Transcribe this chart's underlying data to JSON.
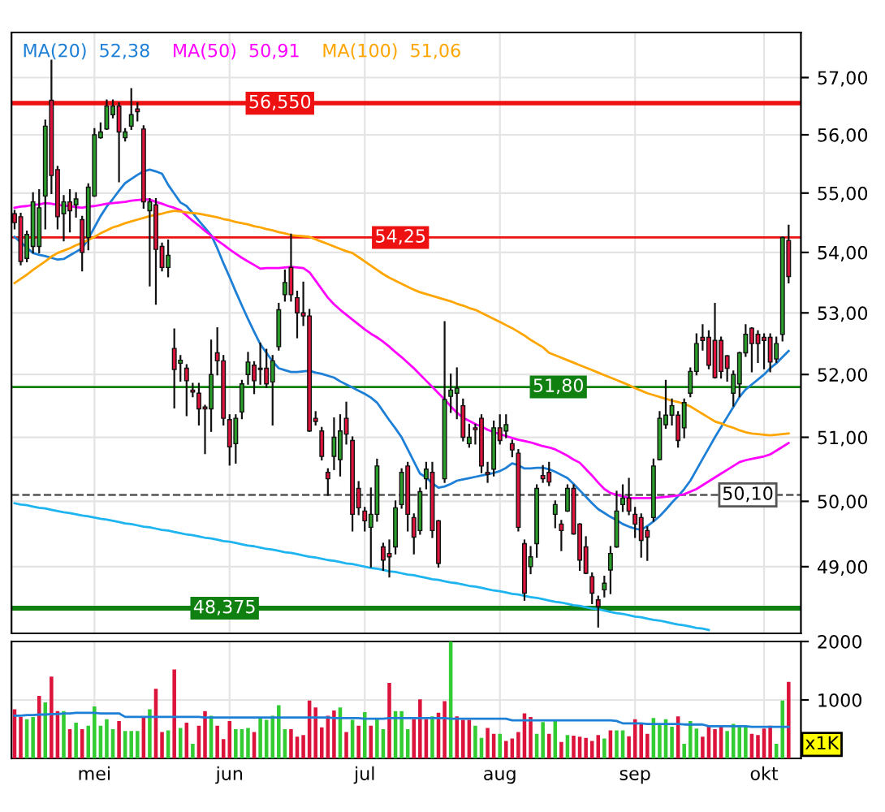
{
  "chart_data": [
    {
      "type": "candlestick",
      "log": true,
      "grid": true,
      "legend": "top left",
      "tick_labels": "y",
      "categories": [
        null,
        null,
        null,
        null,
        null,
        null,
        null,
        null,
        null,
        null,
        null,
        null,
        null,
        null,
        null,
        null,
        null,
        null,
        null,
        null,
        null,
        null,
        null,
        null,
        null,
        null,
        null,
        null,
        null,
        null,
        null,
        null,
        null,
        null,
        null,
        null,
        null,
        null,
        null,
        null,
        null,
        null,
        null,
        null,
        null,
        null,
        null,
        null,
        null,
        null,
        null,
        null,
        null,
        null,
        null,
        null,
        null,
        null,
        null,
        null,
        null,
        null,
        null,
        null,
        null,
        null,
        null,
        null,
        null,
        null,
        null,
        null,
        null,
        null,
        null,
        null,
        null,
        null,
        null,
        null,
        null,
        null,
        null,
        null,
        null,
        null,
        null,
        null,
        null,
        null,
        null,
        null,
        null,
        null,
        null,
        null,
        null,
        null,
        null,
        null,
        null,
        null,
        null,
        null,
        null,
        null,
        null,
        null,
        null,
        null,
        null,
        null,
        null,
        null,
        null,
        null,
        null,
        null,
        null,
        null,
        null,
        null,
        null,
        null,
        null,
        null,
        null
      ],
      "ohlc": [
        [
          54.65,
          54.7,
          54.4,
          54.5
        ],
        [
          54.6,
          54.65,
          53.8,
          53.85
        ],
        [
          53.9,
          54.35,
          53.85,
          54.3
        ],
        [
          54.1,
          55.0,
          54.0,
          54.85
        ],
        [
          54.1,
          55.05,
          54.0,
          54.75
        ],
        [
          54.95,
          56.25,
          54.4,
          56.15
        ],
        [
          56.6,
          57.3,
          55.0,
          55.3
        ],
        [
          55.4,
          55.45,
          54.4,
          54.6
        ],
        [
          54.65,
          54.95,
          54.2,
          54.85
        ],
        [
          54.85,
          55.05,
          54.35,
          54.7
        ],
        [
          54.8,
          55.0,
          54.6,
          54.9
        ],
        [
          54.55,
          54.6,
          53.7,
          54.0
        ],
        [
          54.25,
          55.15,
          54.05,
          55.1
        ],
        [
          54.95,
          56.1,
          54.95,
          56.0
        ],
        [
          55.95,
          56.2,
          55.95,
          56.05
        ],
        [
          56.1,
          56.6,
          56.1,
          56.5
        ],
        [
          56.35,
          56.6,
          56.3,
          56.5
        ],
        [
          56.5,
          56.55,
          55.2,
          56.05
        ],
        [
          55.95,
          56.1,
          55.9,
          56.05
        ],
        [
          56.15,
          56.8,
          56.1,
          56.35
        ],
        [
          56.45,
          56.55,
          56.25,
          56.4
        ],
        [
          56.1,
          56.15,
          54.75,
          54.85
        ],
        [
          54.7,
          54.9,
          53.45,
          54.85
        ],
        [
          54.8,
          54.9,
          53.15,
          54.05
        ],
        [
          54.1,
          54.15,
          53.7,
          53.75
        ],
        [
          53.75,
          54.2,
          53.6,
          53.95
        ],
        [
          52.42,
          52.73,
          51.47,
          52.08
        ],
        [
          52.18,
          52.3,
          51.9,
          52.23
        ],
        [
          52.1,
          52.15,
          51.35,
          51.9
        ],
        [
          51.75,
          51.85,
          51.65,
          51.72
        ],
        [
          51.7,
          51.85,
          51.2,
          51.45
        ],
        [
          51.48,
          51.5,
          50.75,
          51.45
        ],
        [
          51.45,
          52.55,
          51.1,
          52.0
        ],
        [
          52.35,
          52.75,
          52.0,
          52.22
        ],
        [
          52.22,
          52.3,
          51.2,
          51.3
        ],
        [
          51.28,
          51.35,
          50.57,
          50.85
        ],
        [
          50.9,
          51.35,
          50.6,
          51.3
        ],
        [
          51.4,
          51.9,
          51.3,
          51.85
        ],
        [
          52.0,
          52.35,
          51.85,
          52.2
        ],
        [
          52.15,
          52.2,
          51.7,
          51.9
        ],
        [
          52.1,
          52.5,
          51.85,
          52.08
        ],
        [
          52.1,
          52.4,
          51.8,
          51.85
        ],
        [
          51.88,
          52.3,
          51.2,
          52.22
        ],
        [
          52.45,
          53.15,
          52.4,
          53.05
        ],
        [
          53.3,
          53.7,
          53.2,
          53.5
        ],
        [
          53.75,
          54.3,
          53.2,
          53.3
        ],
        [
          53.25,
          53.35,
          52.6,
          53.0
        ],
        [
          53.0,
          53.5,
          52.8,
          52.95
        ],
        [
          52.95,
          53.05,
          51.1,
          51.1
        ],
        [
          51.3,
          51.4,
          51.2,
          51.25
        ],
        [
          51.1,
          51.15,
          50.65,
          50.7
        ],
        [
          50.45,
          50.5,
          50.1,
          50.35
        ],
        [
          50.7,
          51.3,
          50.5,
          51.0
        ],
        [
          50.65,
          51.35,
          50.4,
          51.1
        ],
        [
          51.3,
          51.55,
          50.9,
          51.05
        ],
        [
          50.95,
          51.0,
          49.55,
          49.8
        ],
        [
          50.2,
          50.3,
          49.8,
          49.9
        ],
        [
          49.85,
          49.9,
          49.55,
          49.7
        ],
        [
          49.6,
          50.2,
          49.0,
          49.8
        ],
        [
          49.8,
          50.65,
          49.7,
          50.55
        ],
        [
          49.3,
          49.35,
          48.95,
          49.1
        ],
        [
          49.2,
          49.4,
          48.85,
          49.15
        ],
        [
          49.3,
          50.0,
          49.2,
          49.9
        ],
        [
          49.95,
          50.5,
          49.9,
          50.45
        ],
        [
          50.55,
          50.6,
          49.55,
          49.8
        ],
        [
          49.75,
          49.8,
          49.2,
          49.45
        ],
        [
          49.55,
          50.2,
          49.5,
          50.15
        ],
        [
          50.35,
          50.6,
          50.2,
          50.5
        ],
        [
          50.45,
          50.6,
          49.45,
          49.55
        ],
        [
          49.7,
          49.7,
          49.0,
          49.05
        ],
        [
          50.35,
          52.85,
          50.3,
          51.6
        ],
        [
          51.65,
          52.0,
          51.4,
          51.75
        ],
        [
          51.7,
          52.1,
          51.3,
          51.78
        ],
        [
          51.5,
          51.6,
          50.95,
          51.0
        ],
        [
          50.9,
          51.2,
          50.85,
          51.0
        ],
        [
          51.15,
          51.2,
          50.9,
          51.12
        ],
        [
          51.3,
          51.35,
          50.45,
          50.55
        ],
        [
          50.45,
          50.6,
          50.3,
          50.42
        ],
        [
          50.5,
          51.25,
          50.4,
          51.15
        ],
        [
          51.15,
          51.35,
          50.9,
          50.95
        ],
        [
          51.1,
          51.35,
          51.0,
          51.2
        ],
        [
          50.9,
          50.95,
          50.7,
          50.8
        ],
        [
          50.75,
          50.8,
          49.55,
          49.6
        ],
        [
          49.35,
          49.4,
          48.5,
          48.6
        ],
        [
          49.0,
          49.3,
          48.9,
          49.15
        ],
        [
          49.35,
          50.25,
          49.15,
          50.2
        ],
        [
          50.4,
          50.55,
          50.3,
          50.35
        ],
        [
          50.45,
          50.6,
          50.25,
          50.3
        ],
        [
          49.8,
          50.0,
          49.6,
          49.95
        ],
        [
          49.65,
          49.7,
          49.25,
          49.55
        ],
        [
          49.85,
          50.25,
          49.85,
          50.2
        ],
        [
          50.2,
          50.25,
          49.5,
          49.5
        ],
        [
          49.65,
          49.65,
          48.95,
          49.1
        ],
        [
          49.3,
          49.45,
          48.9,
          48.9
        ],
        [
          48.85,
          48.9,
          48.45,
          48.6
        ],
        [
          48.5,
          48.55,
          48.1,
          48.4
        ],
        [
          48.65,
          48.85,
          48.55,
          48.75
        ],
        [
          48.95,
          49.3,
          48.6,
          49.2
        ],
        [
          49.3,
          50.15,
          49.3,
          49.85
        ],
        [
          49.95,
          50.25,
          49.85,
          50.05
        ],
        [
          50.05,
          50.35,
          49.8,
          49.85
        ],
        [
          49.8,
          49.9,
          49.45,
          49.65
        ],
        [
          49.75,
          49.8,
          49.15,
          49.4
        ],
        [
          49.55,
          49.6,
          49.1,
          49.45
        ],
        [
          49.75,
          50.65,
          49.7,
          50.55
        ],
        [
          50.65,
          51.4,
          50.65,
          51.3
        ],
        [
          51.2,
          51.9,
          51.15,
          51.35
        ],
        [
          51.35,
          51.6,
          51.2,
          51.5
        ],
        [
          51.35,
          51.4,
          50.85,
          50.95
        ],
        [
          51.15,
          51.6,
          51.0,
          51.55
        ],
        [
          51.7,
          52.1,
          51.65,
          52.05
        ],
        [
          52.05,
          52.65,
          52.0,
          52.5
        ],
        [
          52.6,
          52.8,
          52.4,
          52.55
        ],
        [
          52.6,
          52.7,
          52.1,
          52.15
        ],
        [
          52.55,
          53.15,
          51.95,
          51.95
        ],
        [
          52.55,
          52.6,
          51.95,
          52.05
        ],
        [
          52.3,
          52.3,
          51.9,
          52.1
        ],
        [
          51.7,
          52.05,
          51.5,
          52.0
        ],
        [
          51.85,
          52.35,
          51.65,
          52.35
        ],
        [
          52.35,
          52.8,
          52.3,
          52.65
        ],
        [
          52.75,
          52.75,
          52.05,
          52.5
        ],
        [
          52.65,
          52.7,
          52.2,
          52.5
        ],
        [
          52.6,
          52.65,
          52.1,
          52.55
        ],
        [
          52.6,
          52.65,
          52.05,
          52.2
        ],
        [
          52.25,
          52.6,
          52.2,
          52.5
        ],
        [
          52.65,
          54.25,
          52.55,
          54.25
        ],
        [
          54.2,
          54.45,
          53.5,
          53.6
        ]
      ],
      "colors": [
        "#dc143c",
        "#dc143c",
        "#2a9d2a",
        "#2a9d2a",
        "#2a9d2a",
        "#2a9d2a",
        "#dc143c",
        "#dc143c",
        "#2a9d2a",
        "#dc143c",
        "#2a9d2a",
        "#dc143c",
        "#2a9d2a",
        "#2a9d2a",
        "#2a9d2a",
        "#2a9d2a",
        "#2a9d2a",
        "#dc143c",
        "#2a9d2a",
        "#2a9d2a",
        "#dc143c",
        "#dc143c",
        "#2a9d2a",
        "#dc143c",
        "#dc143c",
        "#2a9d2a",
        "#dc143c",
        "#2a9d2a",
        "#dc143c",
        "#dc143c",
        "#dc143c",
        "#dc143c",
        "#2a9d2a",
        "#dc143c",
        "#dc143c",
        "#dc143c",
        "#2a9d2a",
        "#2a9d2a",
        "#2a9d2a",
        "#dc143c",
        "#dc143c",
        "#dc143c",
        "#2a9d2a",
        "#2a9d2a",
        "#2a9d2a",
        "#dc143c",
        "#dc143c",
        "#dc143c",
        "#dc143c",
        "#dc143c",
        "#dc143c",
        "#dc143c",
        "#2a9d2a",
        "#2a9d2a",
        "#dc143c",
        "#dc143c",
        "#dc143c",
        "#dc143c",
        "#2a9d2a",
        "#2a9d2a",
        "#dc143c",
        "#dc143c",
        "#2a9d2a",
        "#2a9d2a",
        "#dc143c",
        "#dc143c",
        "#2a9d2a",
        "#2a9d2a",
        "#dc143c",
        "#dc143c",
        "#2a9d2a",
        "#2a9d2a",
        "#2a9d2a",
        "#dc143c",
        "#2a9d2a",
        "#dc143c",
        "#dc143c",
        "#dc143c",
        "#2a9d2a",
        "#dc143c",
        "#2a9d2a",
        "#dc143c",
        "#dc143c",
        "#dc143c",
        "#2a9d2a",
        "#2a9d2a",
        "#dc143c",
        "#dc143c",
        "#2a9d2a",
        "#dc143c",
        "#2a9d2a",
        "#dc143c",
        "#dc143c",
        "#dc143c",
        "#dc143c",
        "#dc143c",
        "#2a9d2a",
        "#2a9d2a",
        "#2a9d2a",
        "#2a9d2a",
        "#dc143c",
        "#dc143c",
        "#dc143c",
        "#dc143c",
        "#2a9d2a",
        "#2a9d2a",
        "#2a9d2a",
        "#2a9d2a",
        "#dc143c",
        "#2a9d2a",
        "#2a9d2a",
        "#2a9d2a",
        "#dc143c",
        "#dc143c",
        "#dc143c",
        "#dc143c",
        "#dc143c",
        "#2a9d2a",
        "#2a9d2a",
        "#2a9d2a",
        "#dc143c",
        "#dc143c",
        "#dc143c",
        "#dc143c",
        "#2a9d2a",
        "#2a9d2a",
        "#dc143c"
      ],
      "series": [
        {
          "type": "line",
          "name": "MA(20)  52,38",
          "color": "#1e7fd6",
          "values": [
            54.26,
            54.17,
            54.08,
            53.99,
            53.96,
            53.94,
            53.91,
            53.88,
            53.89,
            53.95,
            54.01,
            54.07,
            54.23,
            54.42,
            54.61,
            54.77,
            54.9,
            55.04,
            55.17,
            55.24,
            55.31,
            55.37,
            55.4,
            55.37,
            55.33,
            55.14,
            54.99,
            54.84,
            54.78,
            54.66,
            54.53,
            54.41,
            54.29,
            54.07,
            53.82,
            53.59,
            53.35,
            53.12,
            52.9,
            52.69,
            52.49,
            52.35,
            52.21,
            52.1,
            52.07,
            52.04,
            52.04,
            52.05,
            52.06,
            52.03,
            52.01,
            51.98,
            51.95,
            51.89,
            51.84,
            51.79,
            51.74,
            51.69,
            51.63,
            51.55,
            51.41,
            51.27,
            51.14,
            51.0,
            50.81,
            50.62,
            50.43,
            50.37,
            50.28,
            50.21,
            50.23,
            50.27,
            50.32,
            50.34,
            50.36,
            50.38,
            50.4,
            50.42,
            50.44,
            50.47,
            50.52,
            50.59,
            50.56,
            50.51,
            50.51,
            50.52,
            50.52,
            50.5,
            50.46,
            50.41,
            50.36,
            50.27,
            50.17,
            50.07,
            49.97,
            49.88,
            49.82,
            49.76,
            49.71,
            49.65,
            49.61,
            49.58,
            49.56,
            49.62,
            49.69,
            49.77,
            49.87,
            49.98,
            50.08,
            50.19,
            50.32,
            50.49,
            50.66,
            50.83,
            51.0,
            51.16,
            51.32,
            51.48,
            51.64,
            51.76,
            51.84,
            51.92,
            52.0,
            52.1,
            52.18,
            52.28,
            52.38
          ]
        },
        {
          "type": "line",
          "name": "MA(50)  50,91",
          "color": "#ff00ff",
          "values": [
            54.75,
            54.77,
            54.78,
            54.8,
            54.81,
            54.83,
            54.82,
            54.8,
            54.79,
            54.78,
            54.76,
            54.75,
            54.77,
            54.78,
            54.8,
            54.82,
            54.83,
            54.84,
            54.85,
            54.87,
            54.88,
            54.89,
            54.89,
            54.85,
            54.82,
            54.78,
            54.75,
            54.71,
            54.62,
            54.53,
            54.45,
            54.36,
            54.28,
            54.2,
            54.13,
            54.05,
            53.98,
            53.91,
            53.85,
            53.79,
            53.73,
            53.74,
            53.74,
            53.74,
            53.75,
            53.76,
            53.75,
            53.74,
            53.67,
            53.53,
            53.39,
            53.25,
            53.14,
            53.05,
            52.97,
            52.89,
            52.81,
            52.73,
            52.66,
            52.6,
            52.53,
            52.45,
            52.36,
            52.28,
            52.19,
            52.1,
            52.0,
            51.9,
            51.8,
            51.7,
            51.6,
            51.49,
            51.39,
            51.31,
            51.26,
            51.21,
            51.17,
            51.12,
            51.08,
            51.05,
            51.02,
            50.99,
            50.96,
            50.94,
            50.92,
            50.89,
            50.86,
            50.84,
            50.81,
            50.76,
            50.71,
            50.65,
            50.6,
            50.5,
            50.4,
            50.29,
            50.19,
            50.13,
            50.1,
            50.08,
            50.05,
            50.05,
            50.05,
            50.05,
            50.05,
            50.06,
            50.07,
            50.08,
            50.09,
            50.11,
            50.15,
            50.19,
            50.25,
            50.31,
            50.37,
            50.43,
            50.49,
            50.55,
            50.61,
            50.64,
            50.66,
            50.68,
            50.7,
            50.73,
            50.79,
            50.85,
            50.91
          ]
        },
        {
          "type": "line",
          "name": "MA(100)  51,06",
          "color": "#ffa500",
          "values": [
            53.49,
            53.56,
            53.63,
            53.71,
            53.78,
            53.85,
            53.93,
            53.99,
            54.03,
            54.07,
            54.12,
            54.16,
            54.21,
            54.26,
            54.32,
            54.37,
            54.42,
            54.45,
            54.49,
            54.52,
            54.55,
            54.58,
            54.61,
            54.63,
            54.65,
            54.68,
            54.7,
            54.69,
            54.67,
            54.66,
            54.65,
            54.63,
            54.61,
            54.59,
            54.56,
            54.54,
            54.51,
            54.49,
            54.47,
            54.44,
            54.42,
            54.39,
            54.37,
            54.34,
            54.32,
            54.29,
            54.28,
            54.27,
            54.26,
            54.22,
            54.18,
            54.14,
            54.1,
            54.06,
            54.02,
            53.99,
            53.92,
            53.85,
            53.78,
            53.71,
            53.64,
            53.58,
            53.53,
            53.48,
            53.43,
            53.38,
            53.34,
            53.31,
            53.28,
            53.25,
            53.22,
            53.19,
            53.15,
            53.12,
            53.08,
            53.05,
            53.0,
            52.95,
            52.9,
            52.85,
            52.8,
            52.75,
            52.69,
            52.63,
            52.56,
            52.5,
            52.44,
            52.35,
            52.31,
            52.27,
            52.23,
            52.19,
            52.15,
            52.11,
            52.07,
            52.03,
            51.99,
            51.95,
            51.91,
            51.87,
            51.83,
            51.78,
            51.74,
            51.7,
            51.67,
            51.64,
            51.61,
            51.58,
            51.56,
            51.53,
            51.49,
            51.43,
            51.37,
            51.31,
            51.25,
            51.22,
            51.18,
            51.15,
            51.11,
            51.08,
            51.06,
            51.05,
            51.04,
            51.03,
            51.04,
            51.05,
            51.06
          ]
        },
        {
          "type": "line",
          "color": "#1eb4f0",
          "values": [
            49.97,
            49.95,
            49.94,
            49.92,
            49.9,
            49.89,
            49.87,
            49.85,
            49.83,
            49.82,
            49.8,
            49.78,
            49.77,
            49.75,
            49.73,
            49.72,
            49.7,
            49.68,
            49.66,
            49.65,
            49.63,
            49.61,
            49.6,
            49.58,
            49.56,
            49.55,
            49.53,
            49.51,
            49.49,
            49.48,
            49.46,
            49.44,
            49.43,
            49.41,
            49.39,
            49.38,
            49.36,
            49.34,
            49.32,
            49.31,
            49.29,
            49.27,
            49.26,
            49.24,
            49.22,
            49.21,
            49.19,
            49.17,
            49.15,
            49.14,
            49.12,
            49.1,
            49.09,
            49.07,
            49.05,
            49.04,
            49.02,
            49.0,
            48.98,
            48.97,
            48.95,
            48.93,
            48.92,
            48.9,
            48.88,
            48.87,
            48.85,
            48.83,
            48.81,
            48.8,
            48.78,
            48.76,
            48.75,
            48.73,
            48.71,
            48.7,
            48.68,
            48.66,
            48.64,
            48.63,
            48.61,
            48.59,
            48.58,
            48.56,
            48.54,
            48.53,
            48.51,
            48.49,
            48.47,
            48.46,
            48.44,
            48.42,
            48.41,
            48.39,
            48.37,
            48.36,
            48.34,
            48.32,
            48.3,
            48.29,
            48.27,
            48.25,
            48.24,
            48.22,
            48.2,
            48.19,
            48.17,
            48.15,
            48.13,
            48.12,
            48.1,
            48.08,
            48.07,
            48.05,
            null,
            null,
            null,
            null,
            null,
            null,
            null,
            null,
            null,
            null,
            null,
            null,
            null
          ]
        }
      ],
      "ref_lines": [
        {
          "axis": "y",
          "value": 56.55,
          "label": "56,550",
          "color": "#ee1111"
        },
        {
          "axis": "y",
          "value": 54.25,
          "label": "54,25",
          "color": "#ee1111"
        },
        {
          "axis": "y",
          "value": 51.8,
          "label": "51,80",
          "color": "#108010"
        },
        {
          "axis": "y",
          "value": 50.1,
          "label": "50,10",
          "color": "#555555",
          "line_style": "dashed"
        },
        {
          "axis": "y",
          "value": 48.375,
          "label": "48,375",
          "color": "#108010"
        }
      ],
      "ylim": [
        48.0,
        57.8
      ],
      "yticks": [
        {
          "value": 49,
          "label": "49,00"
        },
        {
          "value": 50,
          "label": "50,00"
        },
        {
          "value": 51,
          "label": "51,00"
        },
        {
          "value": 52,
          "label": "52,00"
        },
        {
          "value": 53,
          "label": "53,00"
        },
        {
          "value": 54,
          "label": "54,00"
        },
        {
          "value": 55,
          "label": "55,00"
        },
        {
          "value": 56,
          "label": "56,00"
        },
        {
          "value": 57,
          "label": "57,00"
        }
      ]
    },
    {
      "type": "bar",
      "grid": true,
      "categories": [
        null,
        null,
        null,
        null,
        null,
        null,
        null,
        null,
        null,
        null,
        null,
        null,
        null,
        "mei",
        null,
        null,
        null,
        null,
        null,
        null,
        null,
        null,
        null,
        null,
        null,
        null,
        null,
        null,
        null,
        null,
        null,
        null,
        null,
        null,
        null,
        "jun",
        null,
        null,
        null,
        null,
        null,
        null,
        null,
        null,
        null,
        null,
        null,
        null,
        null,
        null,
        null,
        null,
        null,
        null,
        null,
        null,
        null,
        "jul",
        null,
        null,
        null,
        null,
        null,
        null,
        null,
        null,
        null,
        null,
        null,
        null,
        null,
        null,
        null,
        null,
        null,
        null,
        null,
        null,
        null,
        "aug",
        null,
        null,
        null,
        null,
        null,
        null,
        null,
        null,
        null,
        null,
        null,
        null,
        null,
        null,
        null,
        null,
        null,
        null,
        null,
        null,
        null,
        "sep",
        null,
        null,
        null,
        null,
        null,
        null,
        null,
        null,
        null,
        null,
        null,
        null,
        null,
        null,
        null,
        null,
        null,
        null,
        null,
        null,
        "okt",
        null,
        null,
        null,
        null
      ],
      "values": [
        840,
        710,
        670,
        710,
        1070,
        960,
        1400,
        810,
        810,
        500,
        610,
        500,
        560,
        890,
        560,
        670,
        500,
        640,
        470,
        470,
        470,
        720,
        840,
        1190,
        450,
        480,
        1520,
        520,
        610,
        250,
        560,
        810,
        730,
        560,
        330,
        640,
        500,
        500,
        520,
        450,
        690,
        660,
        730,
        910,
        500,
        500,
        370,
        400,
        990,
        870,
        530,
        730,
        820,
        870,
        450,
        660,
        560,
        790,
        560,
        690,
        500,
        1290,
        810,
        810,
        500,
        670,
        1010,
        670,
        720,
        780,
        980,
        2000,
        720,
        660,
        660,
        560,
        350,
        520,
        420,
        420,
        300,
        340,
        450,
        770,
        710,
        420,
        620,
        420,
        640,
        280,
        400,
        390,
        370,
        350,
        300,
        400,
        340,
        480,
        480,
        480,
        380,
        670,
        590,
        420,
        690,
        590,
        670,
        540,
        720,
        250,
        640,
        510,
        370,
        540,
        500,
        540,
        470,
        590,
        560,
        560,
        420,
        400,
        510,
        560,
        250,
        990,
        1310
      ],
      "colors": [
        "#dc143c",
        "#dc143c",
        "#33cc33",
        "#33cc33",
        "#dc143c",
        "#33cc33",
        "#dc143c",
        "#dc143c",
        "#33cc33",
        "#dc143c",
        "#33cc33",
        "#dc143c",
        "#33cc33",
        "#33cc33",
        "#33cc33",
        "#33cc33",
        "#33cc33",
        "#dc143c",
        "#33cc33",
        "#33cc33",
        "#33cc33",
        "#dc143c",
        "#33cc33",
        "#dc143c",
        "#dc143c",
        "#33cc33",
        "#dc143c",
        "#33cc33",
        "#dc143c",
        "#33cc33",
        "#dc143c",
        "#dc143c",
        "#33cc33",
        "#dc143c",
        "#dc143c",
        "#dc143c",
        "#33cc33",
        "#33cc33",
        "#33cc33",
        "#dc143c",
        "#33cc33",
        "#33cc33",
        "#33cc33",
        "#33cc33",
        "#33cc33",
        "#dc143c",
        "#dc143c",
        "#dc143c",
        "#dc143c",
        "#dc143c",
        "#dc143c",
        "#dc143c",
        "#dc143c",
        "#33cc33",
        "#dc143c",
        "#33cc33",
        "#dc143c",
        "#33cc33",
        "#dc143c",
        "#33cc33",
        "#33cc33",
        "#dc143c",
        "#33cc33",
        "#33cc33",
        "#33cc33",
        "#dc143c",
        "#dc143c",
        "#dc143c",
        "#33cc33",
        "#dc143c",
        "#dc143c",
        "#33cc33",
        "#dc143c",
        "#dc143c",
        "#dc143c",
        "#33cc33",
        "#33cc33",
        "#dc143c",
        "#dc143c",
        "#33cc33",
        "#dc143c",
        "#dc143c",
        "#dc143c",
        "#dc143c",
        "#dc143c",
        "#33cc33",
        "#33cc33",
        "#dc143c",
        "#33cc33",
        "#dc143c",
        "#33cc33",
        "#dc143c",
        "#dc143c",
        "#dc143c",
        "#dc143c",
        "#dc143c",
        "#33cc33",
        "#dc143c",
        "#33cc33",
        "#33cc33",
        "#dc143c",
        "#dc143c",
        "#dc143c",
        "#dc143c",
        "#33cc33",
        "#33cc33",
        "#33cc33",
        "#33cc33",
        "#dc143c",
        "#33cc33",
        "#33cc33",
        "#33cc33",
        "#dc143c",
        "#dc143c",
        "#dc143c",
        "#dc143c",
        "#33cc33",
        "#33cc33",
        "#33cc33",
        "#33cc33",
        "#dc143c",
        "#dc143c",
        "#dc143c",
        "#dc143c",
        "#33cc33",
        "#33cc33",
        "#dc143c"
      ],
      "series": [
        {
          "type": "line",
          "color": "#1e7fd6",
          "values": [
            730,
            730,
            740,
            740,
            750,
            750,
            760,
            760,
            770,
            770,
            780,
            780,
            780,
            780,
            770,
            770,
            770,
            770,
            710,
            710,
            710,
            710,
            710,
            710,
            710,
            710,
            710,
            710,
            710,
            710,
            710,
            700,
            700,
            700,
            700,
            700,
            700,
            700,
            700,
            700,
            700,
            700,
            700,
            700,
            700,
            700,
            700,
            700,
            700,
            700,
            700,
            700,
            690,
            690,
            690,
            690,
            690,
            680,
            680,
            680,
            680,
            690,
            690,
            690,
            690,
            690,
            690,
            690,
            690,
            690,
            690,
            680,
            680,
            680,
            680,
            680,
            680,
            680,
            680,
            680,
            680,
            650,
            650,
            650,
            650,
            650,
            650,
            650,
            650,
            650,
            650,
            650,
            650,
            650,
            650,
            650,
            650,
            650,
            640,
            600,
            600,
            600,
            600,
            590,
            590,
            590,
            590,
            590,
            590,
            580,
            580,
            580,
            580,
            550,
            550,
            550,
            550,
            550,
            550,
            550,
            540,
            540,
            540,
            540,
            540,
            540,
            540
          ]
        }
      ],
      "ylim": [
        0,
        2000
      ],
      "yticks": [
        1000,
        2000
      ],
      "annotations": [
        "x1K"
      ]
    }
  ]
}
